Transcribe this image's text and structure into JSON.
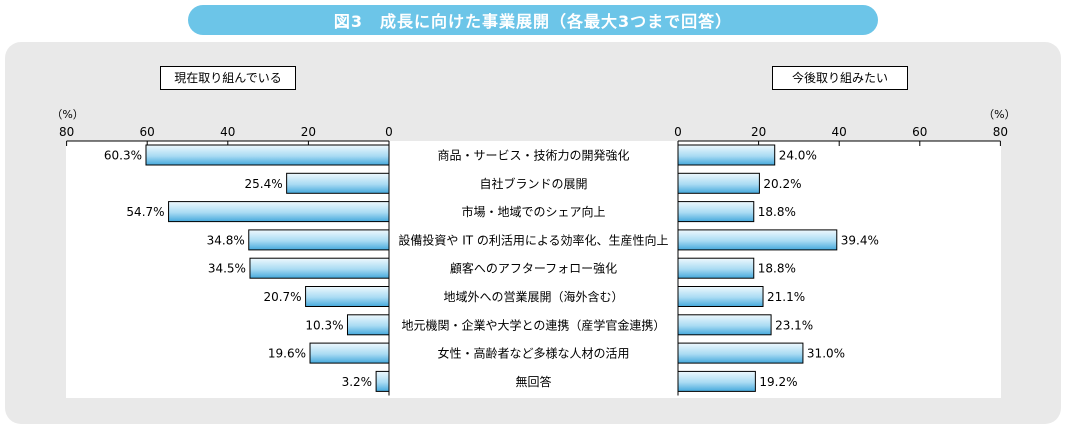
{
  "title": "図3　成長に向けた事業展開（各最大3つまで回答）",
  "chart_data": {
    "type": "bar",
    "categories": [
      "商品・サービス・技術力の開発強化",
      "自社ブランドの展開",
      "市場・地域でのシェア向上",
      "設備投資や IT の利活用による効率化、生産性向上",
      "顧客へのアフターフォロー強化",
      "地域外への営業展開（海外含む）",
      "地元機関・企業や大学との連携（産学官金連携）",
      "女性・高齢者など多様な人材の活用",
      "無回答"
    ],
    "series": [
      {
        "name": "現在取り組んでいる",
        "values": [
          60.3,
          25.4,
          54.7,
          34.8,
          34.5,
          20.7,
          10.3,
          19.6,
          3.2
        ]
      },
      {
        "name": "今後取り組みたい",
        "values": [
          24.0,
          20.2,
          18.8,
          39.4,
          18.8,
          21.1,
          23.1,
          31.0,
          19.2
        ]
      }
    ],
    "left_axis": {
      "unit": "（%）",
      "ticks": [
        80,
        60,
        40,
        20,
        0
      ],
      "lim": [
        0,
        80
      ],
      "reversed": true
    },
    "right_axis": {
      "unit": "（%）",
      "ticks": [
        0,
        20,
        40,
        60,
        80
      ],
      "lim": [
        0,
        80
      ]
    },
    "value_suffix": "%",
    "bar_colors": {
      "light": "#eef8fd",
      "dark": "#45a9dc",
      "stroke": "#000000"
    }
  }
}
